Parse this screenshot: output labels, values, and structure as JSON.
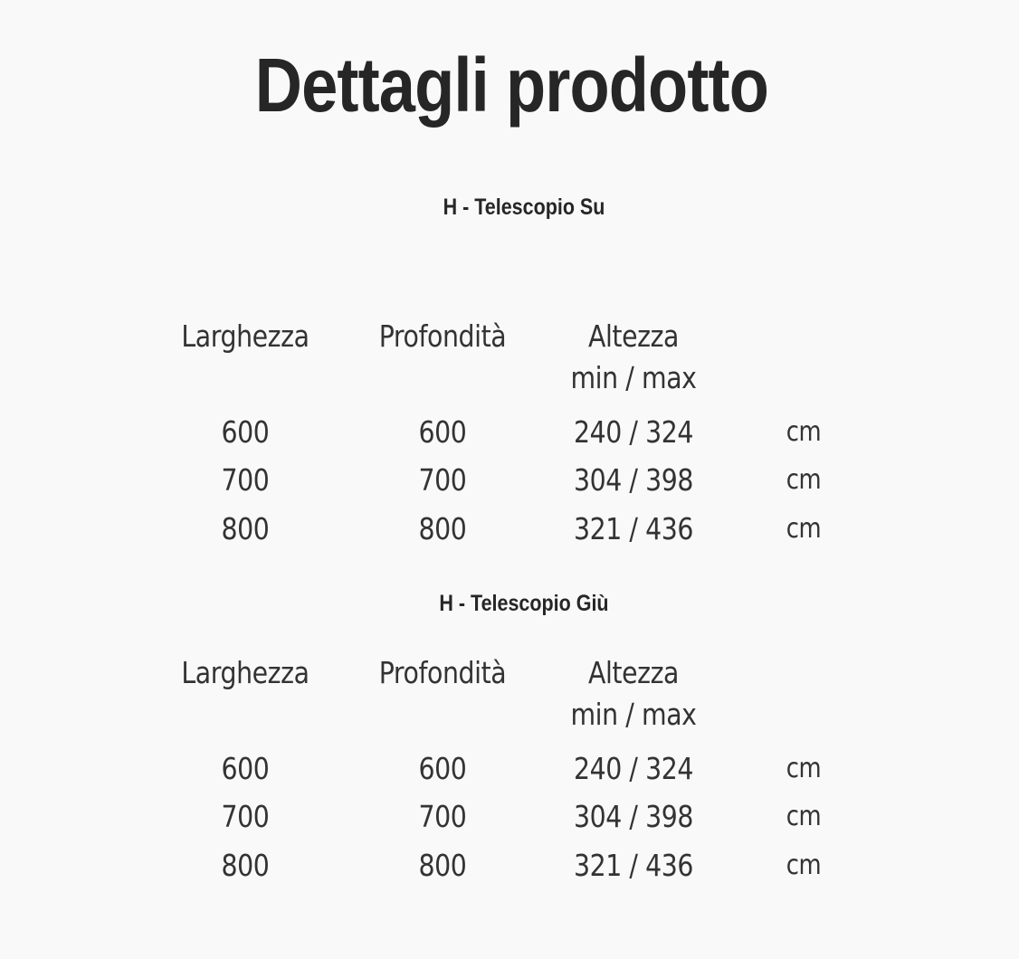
{
  "title": "Dettagli prodotto",
  "sections": [
    {
      "heading": "H - Telescopio Su",
      "headers": [
        "Larghezza",
        "Profondità",
        "Altezza",
        ""
      ],
      "subheader": "min / max",
      "rows": [
        [
          "600",
          "600",
          "240 / 324",
          "cm"
        ],
        [
          "700",
          "700",
          "304 / 398",
          "cm"
        ],
        [
          "800",
          "800",
          "321 / 436",
          "cm"
        ]
      ]
    },
    {
      "heading": "H - Telescopio Giù",
      "headers": [
        "Larghezza",
        "Profondità",
        "Altezza",
        ""
      ],
      "subheader": "min / max",
      "rows": [
        [
          "600",
          "600",
          "240 / 324",
          "cm"
        ],
        [
          "700",
          "700",
          "304 / 398",
          "cm"
        ],
        [
          "800",
          "800",
          "321 / 436",
          "cm"
        ]
      ]
    }
  ]
}
